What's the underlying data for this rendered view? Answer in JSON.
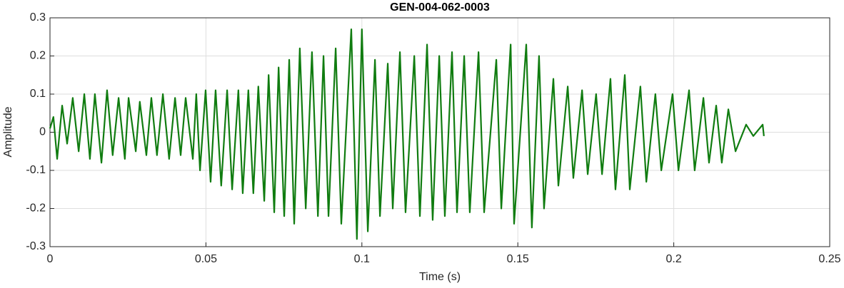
{
  "chart_data": {
    "type": "line",
    "title": "GEN-004-062-0003",
    "xlabel": "Time (s)",
    "ylabel": "Amplitude",
    "xlim": [
      0,
      0.25
    ],
    "xticks": [
      0,
      0.05,
      0.1,
      0.15,
      0.2,
      0.25
    ],
    "ylim": [
      -0.3,
      0.3
    ],
    "yticks": [
      -0.3,
      -0.2,
      -0.1,
      0,
      0.1,
      0.2,
      0.3
    ],
    "grid": true,
    "series": [
      {
        "color": "#107c10",
        "x": [
          0,
          0.0011,
          0.0023,
          0.0039,
          0.0055,
          0.0073,
          0.0092,
          0.011,
          0.0128,
          0.0144,
          0.0165,
          0.0183,
          0.0201,
          0.022,
          0.024,
          0.0252,
          0.0275,
          0.0288,
          0.0309,
          0.0325,
          0.0343,
          0.0362,
          0.0382,
          0.0401,
          0.0419,
          0.0435,
          0.0458,
          0.0469,
          0.0481,
          0.0499,
          0.0515,
          0.0531,
          0.0549,
          0.0568,
          0.0584,
          0.0604,
          0.0618,
          0.0636,
          0.0652,
          0.0668,
          0.0687,
          0.0701,
          0.0719,
          0.0733,
          0.0751,
          0.0767,
          0.0783,
          0.0801,
          0.082,
          0.084,
          0.0859,
          0.0877,
          0.0893,
          0.0916,
          0.0934,
          0.0966,
          0.0984,
          0.1,
          0.1019,
          0.1042,
          0.1058,
          0.1083,
          0.1099,
          0.1122,
          0.114,
          0.1168,
          0.1186,
          0.1209,
          0.1227,
          0.1248,
          0.1266,
          0.1289,
          0.1305,
          0.1328,
          0.1346,
          0.1374,
          0.1392,
          0.1431,
          0.1447,
          0.1477,
          0.1488,
          0.1527,
          0.1545,
          0.1568,
          0.1584,
          0.1614,
          0.163,
          0.166,
          0.1678,
          0.1706,
          0.1724,
          0.1751,
          0.177,
          0.1797,
          0.1813,
          0.1843,
          0.1859,
          0.1893,
          0.1912,
          0.1941,
          0.196,
          0.1996,
          0.2015,
          0.2049,
          0.2067,
          0.2095,
          0.2113,
          0.2136,
          0.2154,
          0.2175,
          0.2198,
          0.2232,
          0.2255,
          0.2285,
          0.2289
        ],
        "values": [
          0.01,
          0.04,
          -0.07,
          0.07,
          -0.03,
          0.09,
          -0.05,
          0.1,
          -0.07,
          0.1,
          -0.08,
          0.11,
          -0.06,
          0.09,
          -0.07,
          0.09,
          -0.05,
          0.08,
          -0.06,
          0.09,
          -0.06,
          0.1,
          -0.07,
          0.09,
          -0.06,
          0.09,
          -0.07,
          0.1,
          -0.1,
          0.11,
          -0.13,
          0.11,
          -0.14,
          0.11,
          -0.15,
          0.11,
          -0.16,
          0.11,
          -0.16,
          0.12,
          -0.18,
          0.15,
          -0.21,
          0.17,
          -0.22,
          0.19,
          -0.24,
          0.22,
          -0.2,
          0.21,
          -0.22,
          0.2,
          -0.22,
          0.22,
          -0.24,
          0.27,
          -0.28,
          0.27,
          -0.26,
          0.19,
          -0.22,
          0.18,
          -0.2,
          0.21,
          -0.21,
          0.2,
          -0.22,
          0.23,
          -0.23,
          0.2,
          -0.22,
          0.21,
          -0.21,
          0.2,
          -0.21,
          0.21,
          -0.21,
          0.19,
          -0.2,
          0.23,
          -0.24,
          0.23,
          -0.25,
          0.2,
          -0.2,
          0.14,
          -0.14,
          0.12,
          -0.12,
          0.11,
          -0.11,
          0.1,
          -0.11,
          0.14,
          -0.15,
          0.15,
          -0.15,
          0.12,
          -0.13,
          0.1,
          -0.1,
          0.1,
          -0.1,
          0.11,
          -0.1,
          0.09,
          -0.08,
          0.07,
          -0.08,
          0.06,
          -0.05,
          0.02,
          -0.01,
          0.02,
          -0.01
        ]
      }
    ]
  }
}
